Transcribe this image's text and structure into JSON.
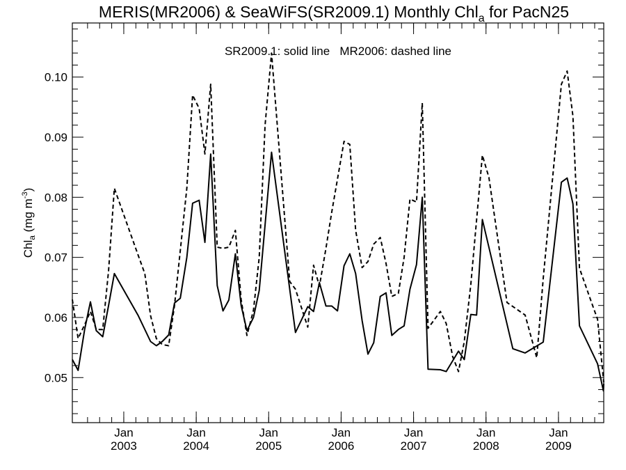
{
  "chart_data": {
    "type": "line",
    "title": "MERIS(MR2006) & SeaWiFS(SR2009.1) Monthly Chl",
    "title_subscript": "a",
    "title_suffix": " for PacN25",
    "ylabel_main": "Chl",
    "ylabel_sub": "a",
    "ylabel_units": " (mg m",
    "ylabel_units_sup": "-3",
    "ylabel_close": ")",
    "legend_note": "SR2009.1: solid line   MR2006: dashed line",
    "xlim": [
      2002.29,
      2009.625
    ],
    "ylim": [
      0.0425,
      0.109
    ],
    "y_ticks": [
      {
        "value": 0.05,
        "label": "0.05"
      },
      {
        "value": 0.06,
        "label": "0.06"
      },
      {
        "value": 0.07,
        "label": "0.07"
      },
      {
        "value": 0.08,
        "label": "0.08"
      },
      {
        "value": 0.09,
        "label": "0.09"
      },
      {
        "value": 0.1,
        "label": "0.10"
      }
    ],
    "x_ticks": [
      {
        "value": 2003.0,
        "month": "Jan",
        "year": "2003"
      },
      {
        "value": 2004.0,
        "month": "Jan",
        "year": "2004"
      },
      {
        "value": 2005.0,
        "month": "Jan",
        "year": "2005"
      },
      {
        "value": 2006.0,
        "month": "Jan",
        "year": "2006"
      },
      {
        "value": 2007.0,
        "month": "Jan",
        "year": "2007"
      },
      {
        "value": 2008.0,
        "month": "Jan",
        "year": "2008"
      },
      {
        "value": 2009.0,
        "month": "Jan",
        "year": "2009"
      }
    ],
    "grid": false,
    "series": [
      {
        "style": "solid",
        "color": "#000000",
        "points": [
          [
            2002.29,
            0.053
          ],
          [
            2002.37,
            0.0512
          ],
          [
            2002.46,
            0.058
          ],
          [
            2002.54,
            0.0626
          ],
          [
            2002.62,
            0.0578
          ],
          [
            2002.71,
            0.0568
          ],
          [
            2002.79,
            0.062
          ],
          [
            2002.87,
            0.0673
          ],
          [
            2003.2,
            0.0603
          ],
          [
            2003.37,
            0.056
          ],
          [
            2003.45,
            0.0553
          ],
          [
            2003.53,
            0.056
          ],
          [
            2003.62,
            0.0571
          ],
          [
            2003.7,
            0.0624
          ],
          [
            2003.78,
            0.0632
          ],
          [
            2003.87,
            0.07
          ],
          [
            2003.95,
            0.079
          ],
          [
            2004.04,
            0.0795
          ],
          [
            2004.12,
            0.0725
          ],
          [
            2004.2,
            0.0872
          ],
          [
            2004.29,
            0.0653
          ],
          [
            2004.37,
            0.0611
          ],
          [
            2004.45,
            0.0629
          ],
          [
            2004.54,
            0.0706
          ],
          [
            2004.62,
            0.062
          ],
          [
            2004.7,
            0.0578
          ],
          [
            2004.79,
            0.06
          ],
          [
            2004.87,
            0.0645
          ],
          [
            2005.04,
            0.0875
          ],
          [
            2005.37,
            0.0575
          ],
          [
            2005.54,
            0.0618
          ],
          [
            2005.62,
            0.061
          ],
          [
            2005.7,
            0.0658
          ],
          [
            2005.79,
            0.0619
          ],
          [
            2005.87,
            0.0619
          ],
          [
            2005.95,
            0.0611
          ],
          [
            2006.04,
            0.0686
          ],
          [
            2006.12,
            0.0706
          ],
          [
            2006.2,
            0.0673
          ],
          [
            2006.29,
            0.0595
          ],
          [
            2006.37,
            0.0539
          ],
          [
            2006.45,
            0.0558
          ],
          [
            2006.54,
            0.0635
          ],
          [
            2006.62,
            0.0641
          ],
          [
            2006.7,
            0.057
          ],
          [
            2006.79,
            0.058
          ],
          [
            2006.87,
            0.0586
          ],
          [
            2006.95,
            0.0647
          ],
          [
            2007.04,
            0.0688
          ],
          [
            2007.12,
            0.08
          ],
          [
            2007.2,
            0.0514
          ],
          [
            2007.37,
            0.0513
          ],
          [
            2007.45,
            0.051
          ],
          [
            2007.62,
            0.0544
          ],
          [
            2007.7,
            0.053
          ],
          [
            2007.79,
            0.0605
          ],
          [
            2007.87,
            0.0604
          ],
          [
            2007.95,
            0.0763
          ],
          [
            2008.37,
            0.0548
          ],
          [
            2008.54,
            0.0541
          ],
          [
            2008.79,
            0.0559
          ],
          [
            2009.04,
            0.0825
          ],
          [
            2009.12,
            0.0832
          ],
          [
            2009.2,
            0.0789
          ],
          [
            2009.29,
            0.0586
          ],
          [
            2009.54,
            0.0523
          ],
          [
            2009.62,
            0.0478
          ],
          [
            2009.625,
            0.049
          ]
        ]
      },
      {
        "style": "dashed",
        "color": "#000000",
        "points": [
          [
            2002.29,
            0.063
          ],
          [
            2002.37,
            0.0565
          ],
          [
            2002.46,
            0.0588
          ],
          [
            2002.54,
            0.061
          ],
          [
            2002.62,
            0.058
          ],
          [
            2002.71,
            0.058
          ],
          [
            2002.79,
            0.0678
          ],
          [
            2002.87,
            0.0815
          ],
          [
            2003.2,
            0.0703
          ],
          [
            2003.29,
            0.0673
          ],
          [
            2003.37,
            0.0603
          ],
          [
            2003.45,
            0.0565
          ],
          [
            2003.53,
            0.0555
          ],
          [
            2003.62,
            0.0553
          ],
          [
            2003.7,
            0.062
          ],
          [
            2003.87,
            0.0815
          ],
          [
            2003.95,
            0.097
          ],
          [
            2004.04,
            0.0948
          ],
          [
            2004.12,
            0.0872
          ],
          [
            2004.2,
            0.0988
          ],
          [
            2004.29,
            0.0717
          ],
          [
            2004.37,
            0.0715
          ],
          [
            2004.45,
            0.0717
          ],
          [
            2004.54,
            0.0745
          ],
          [
            2004.62,
            0.063
          ],
          [
            2004.7,
            0.057
          ],
          [
            2004.79,
            0.0612
          ],
          [
            2004.87,
            0.07
          ],
          [
            2004.95,
            0.092
          ],
          [
            2005.04,
            0.104
          ],
          [
            2005.29,
            0.066
          ],
          [
            2005.37,
            0.0647
          ],
          [
            2005.54,
            0.0584
          ],
          [
            2005.62,
            0.0687
          ],
          [
            2005.7,
            0.0652
          ],
          [
            2005.79,
            0.0715
          ],
          [
            2005.87,
            0.0775
          ],
          [
            2006.04,
            0.0893
          ],
          [
            2006.12,
            0.0888
          ],
          [
            2006.2,
            0.0745
          ],
          [
            2006.29,
            0.0683
          ],
          [
            2006.37,
            0.0693
          ],
          [
            2006.45,
            0.0722
          ],
          [
            2006.54,
            0.0733
          ],
          [
            2006.62,
            0.069
          ],
          [
            2006.7,
            0.0635
          ],
          [
            2006.79,
            0.064
          ],
          [
            2006.87,
            0.07
          ],
          [
            2006.95,
            0.0797
          ],
          [
            2007.04,
            0.0792
          ],
          [
            2007.12,
            0.0957
          ],
          [
            2007.2,
            0.0582
          ],
          [
            2007.37,
            0.061
          ],
          [
            2007.45,
            0.059
          ],
          [
            2007.54,
            0.0535
          ],
          [
            2007.62,
            0.051
          ],
          [
            2007.7,
            0.056
          ],
          [
            2007.79,
            0.0655
          ],
          [
            2007.95,
            0.087
          ],
          [
            2008.04,
            0.0833
          ],
          [
            2008.29,
            0.0625
          ],
          [
            2008.54,
            0.0604
          ],
          [
            2008.7,
            0.0533
          ],
          [
            2008.79,
            0.0665
          ],
          [
            2009.04,
            0.0988
          ],
          [
            2009.12,
            0.101
          ],
          [
            2009.2,
            0.0935
          ],
          [
            2009.29,
            0.0682
          ],
          [
            2009.45,
            0.0627
          ],
          [
            2009.54,
            0.0597
          ],
          [
            2009.625,
            0.0492
          ]
        ]
      }
    ]
  }
}
